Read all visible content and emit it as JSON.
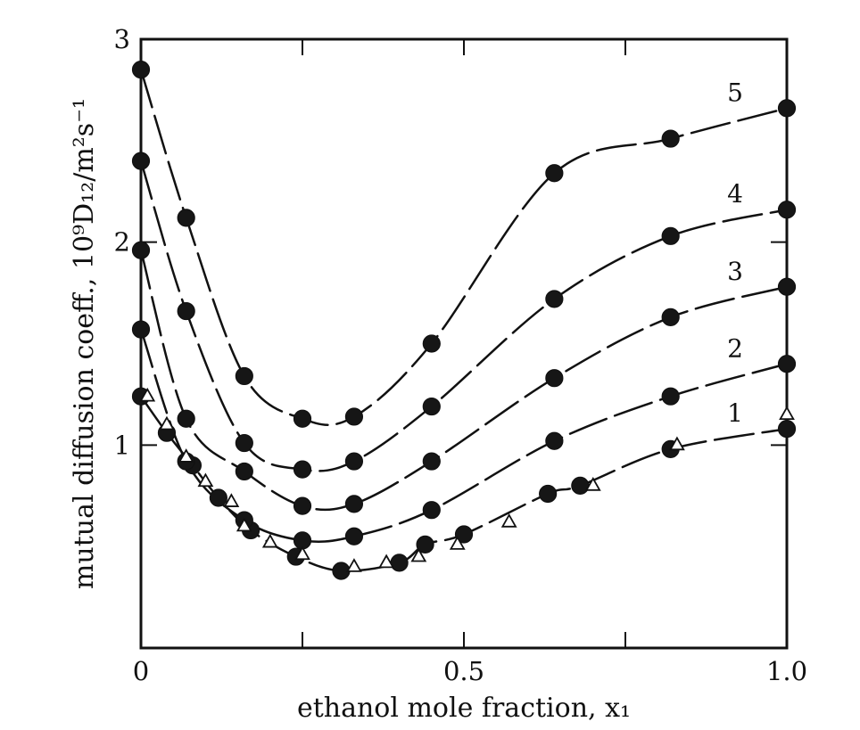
{
  "chart_data": {
    "type": "line",
    "xlabel": "ethanol mole fraction, x₁",
    "ylabel": "mutual diffusion coeff., 10⁹D₁₂/m²s⁻¹",
    "xlim": [
      0,
      1.0
    ],
    "ylim": [
      0,
      3
    ],
    "x_ticks": [
      "0",
      "0.5",
      "1.0"
    ],
    "y_ticks": [
      "1",
      "2",
      "3"
    ],
    "series": [
      {
        "name": "1",
        "x": [
          0.0,
          0.04,
          0.08,
          0.12,
          0.17,
          0.24,
          0.31,
          0.4,
          0.44,
          0.5,
          0.63,
          0.68,
          0.82,
          1.0
        ],
        "values": [
          1.24,
          1.06,
          0.9,
          0.74,
          0.58,
          0.45,
          0.38,
          0.42,
          0.51,
          0.56,
          0.76,
          0.8,
          0.98,
          1.08
        ]
      },
      {
        "name": "2",
        "x": [
          0.0,
          0.07,
          0.16,
          0.25,
          0.33,
          0.45,
          0.64,
          0.82,
          1.0
        ],
        "values": [
          1.57,
          0.92,
          0.63,
          0.53,
          0.55,
          0.68,
          1.02,
          1.24,
          1.4
        ]
      },
      {
        "name": "3",
        "x": [
          0.0,
          0.07,
          0.16,
          0.25,
          0.33,
          0.45,
          0.64,
          0.82,
          1.0
        ],
        "values": [
          1.96,
          1.13,
          0.87,
          0.7,
          0.71,
          0.92,
          1.33,
          1.63,
          1.78
        ]
      },
      {
        "name": "4",
        "x": [
          0.0,
          0.07,
          0.16,
          0.25,
          0.33,
          0.45,
          0.64,
          0.82,
          1.0
        ],
        "values": [
          2.4,
          1.66,
          1.01,
          0.88,
          0.92,
          1.19,
          1.72,
          2.03,
          2.16
        ]
      },
      {
        "name": "5",
        "x": [
          0.0,
          0.07,
          0.16,
          0.25,
          0.33,
          0.45,
          0.64,
          0.82,
          1.0
        ],
        "values": [
          2.85,
          2.12,
          1.34,
          1.13,
          1.14,
          1.5,
          2.34,
          2.51,
          2.66
        ]
      },
      {
        "name": "",
        "x": [
          0.01,
          0.04,
          0.07,
          0.1,
          0.14,
          0.16,
          0.2,
          0.25,
          0.33,
          0.38,
          0.43,
          0.49,
          0.57,
          0.7,
          0.83,
          1.0
        ],
        "values": [
          1.24,
          1.1,
          0.94,
          0.82,
          0.72,
          0.6,
          0.52,
          0.46,
          0.4,
          0.42,
          0.45,
          0.51,
          0.62,
          0.8,
          1.0,
          1.15
        ]
      }
    ],
    "curve_style": "dashed",
    "legend": "none",
    "grid": false
  }
}
